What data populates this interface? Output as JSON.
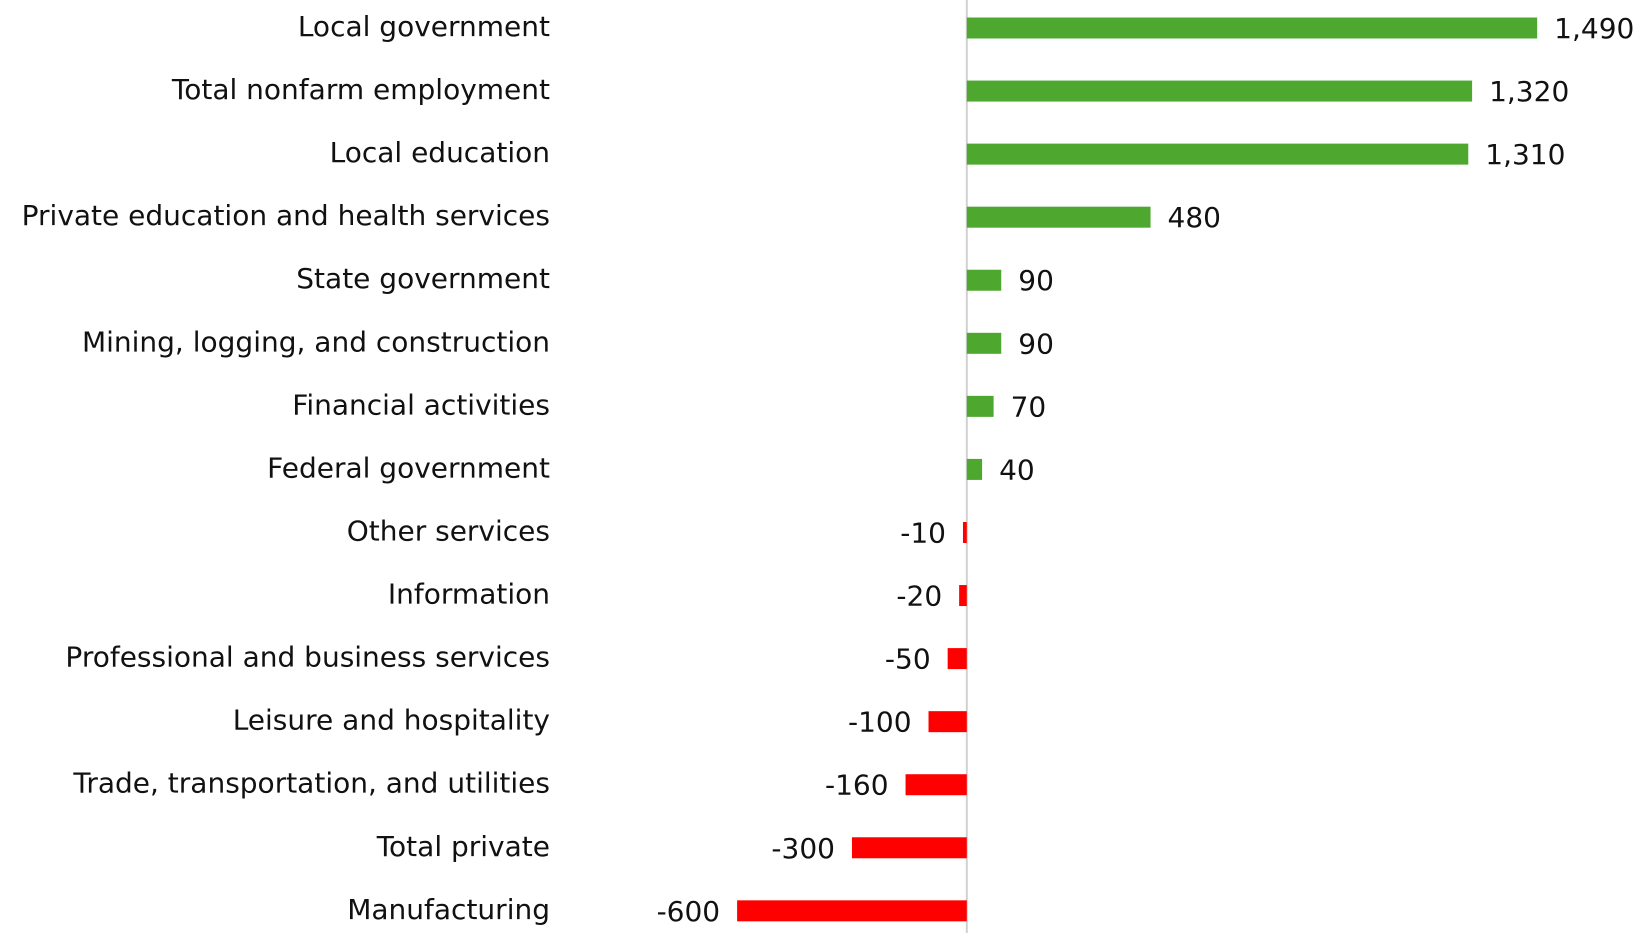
{
  "chart_data": {
    "type": "hbar",
    "categories": [
      "Local government",
      "Total nonfarm employment",
      "Local education",
      "Private education and health services",
      "State government",
      "Mining, logging, and construction",
      "Financial activities",
      "Federal government",
      "Other services",
      "Information",
      "Professional and business services",
      "Leisure and hospitality",
      "Trade, transportation, and utilities",
      "Total private",
      "Manufacturing"
    ],
    "values": [
      1490,
      1320,
      1310,
      480,
      90,
      90,
      70,
      40,
      -10,
      -20,
      -50,
      -100,
      -160,
      -300,
      -600
    ],
    "value_labels": [
      "1,490",
      "1,320",
      "1,310",
      "480",
      "90",
      "90",
      "70",
      "40",
      "-10",
      "-20",
      "-50",
      "-100",
      "-160",
      "-300",
      "-600"
    ],
    "positive_color": "#4ea72e",
    "negative_color": "#ff0000",
    "xlim": [
      -1000,
      1500
    ]
  }
}
